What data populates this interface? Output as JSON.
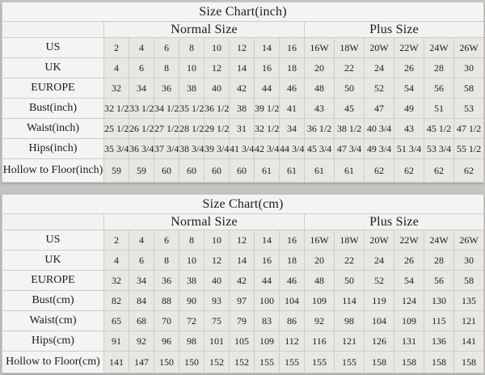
{
  "page": {
    "background_color": "#c7c5c3",
    "table_background": "#f5f4f2",
    "data_cell_color": "#e9e7e4",
    "grid_line_color": "#cfccc9",
    "outer_border_color": "#9e9c9a",
    "text_color": "#1b1b1b"
  },
  "tables": [
    {
      "title": "Size Chart(inch)",
      "group_headers": [
        "Normal Size",
        "Plus Size"
      ],
      "rows": [
        {
          "label": "US",
          "normal": [
            "2",
            "4",
            "6",
            "8",
            "10",
            "12",
            "14",
            "16"
          ],
          "plus": [
            "16W",
            "18W",
            "20W",
            "22W",
            "24W",
            "26W"
          ]
        },
        {
          "label": "UK",
          "normal": [
            "4",
            "6",
            "8",
            "10",
            "12",
            "14",
            "16",
            "18"
          ],
          "plus": [
            "20",
            "22",
            "24",
            "26",
            "28",
            "30"
          ]
        },
        {
          "label": "EUROPE",
          "normal": [
            "32",
            "34",
            "36",
            "38",
            "40",
            "42",
            "44",
            "46"
          ],
          "plus": [
            "48",
            "50",
            "52",
            "54",
            "56",
            "58"
          ]
        },
        {
          "label": "Bust(inch)",
          "normal": [
            "32 1/2",
            "33 1/2",
            "34 1/2",
            "35 1/2",
            "36 1/2",
            "38",
            "39 1/2",
            "41"
          ],
          "plus": [
            "43",
            "45",
            "47",
            "49",
            "51",
            "53"
          ]
        },
        {
          "label": "Waist(inch)",
          "normal": [
            "25 1/2",
            "26 1/2",
            "27 1/2",
            "28 1/2",
            "29 1/2",
            "31",
            "32 1/2",
            "34"
          ],
          "plus": [
            "36 1/2",
            "38 1/2",
            "40 3/4",
            "43",
            "45 1/2",
            "47 1/2"
          ]
        },
        {
          "label": "Hips(inch)",
          "normal": [
            "35 3/4",
            "36 3/4",
            "37 3/4",
            "38 3/4",
            "39 3/4",
            "41 3/4",
            "42 3/4",
            "44 3/4"
          ],
          "plus": [
            "45 3/4",
            "47 3/4",
            "49 3/4",
            "51 3/4",
            "53 3/4",
            "55 1/2"
          ]
        },
        {
          "label": "Hollow to Floor(inch)",
          "normal": [
            "59",
            "59",
            "60",
            "60",
            "60",
            "60",
            "61",
            "61"
          ],
          "plus": [
            "61",
            "61",
            "62",
            "62",
            "62",
            "62"
          ]
        }
      ]
    },
    {
      "title": "Size Chart(cm)",
      "group_headers": [
        "Normal Size",
        "Plus Size"
      ],
      "rows": [
        {
          "label": "US",
          "normal": [
            "2",
            "4",
            "6",
            "8",
            "10",
            "12",
            "14",
            "16"
          ],
          "plus": [
            "16W",
            "18W",
            "20W",
            "22W",
            "24W",
            "26W"
          ]
        },
        {
          "label": "UK",
          "normal": [
            "4",
            "6",
            "8",
            "10",
            "12",
            "14",
            "16",
            "18"
          ],
          "plus": [
            "20",
            "22",
            "24",
            "26",
            "28",
            "30"
          ]
        },
        {
          "label": "EUROPE",
          "normal": [
            "32",
            "34",
            "36",
            "38",
            "40",
            "42",
            "44",
            "46"
          ],
          "plus": [
            "48",
            "50",
            "52",
            "54",
            "56",
            "58"
          ]
        },
        {
          "label": "Bust(cm)",
          "normal": [
            "82",
            "84",
            "88",
            "90",
            "93",
            "97",
            "100",
            "104"
          ],
          "plus": [
            "109",
            "114",
            "119",
            "124",
            "130",
            "135"
          ]
        },
        {
          "label": "Waist(cm)",
          "normal": [
            "65",
            "68",
            "70",
            "72",
            "75",
            "79",
            "83",
            "86"
          ],
          "plus": [
            "92",
            "98",
            "104",
            "109",
            "115",
            "121"
          ]
        },
        {
          "label": "Hips(cm)",
          "normal": [
            "91",
            "92",
            "96",
            "98",
            "101",
            "105",
            "109",
            "112"
          ],
          "plus": [
            "116",
            "121",
            "126",
            "131",
            "136",
            "141"
          ]
        },
        {
          "label": "Hollow to Floor(cm)",
          "normal": [
            "141",
            "147",
            "150",
            "150",
            "152",
            "152",
            "155",
            "155"
          ],
          "plus": [
            "155",
            "155",
            "158",
            "158",
            "158",
            "158"
          ]
        }
      ]
    }
  ]
}
